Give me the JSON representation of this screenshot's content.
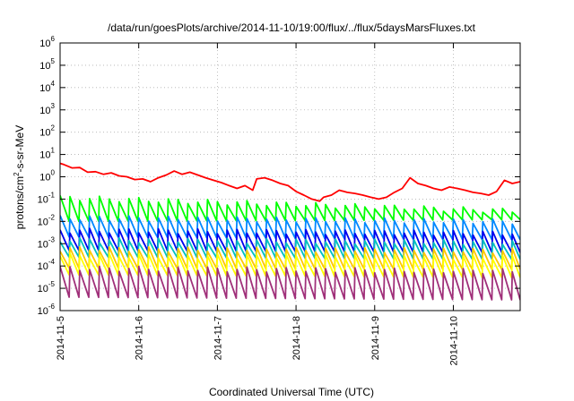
{
  "chart_data": {
    "type": "line",
    "title": "/data/run/goesPlots/archive/2014-11-10/19:00/flux/../flux/5daysMarsFluxes.txt",
    "xlabel": "Coordinated Universal Time (UTC)",
    "ylabel": {
      "base": "protons/cm",
      "sup": "2",
      "rest": "-s-sr-MeV"
    },
    "yscale": "log",
    "ylim_exp": [
      -6,
      6
    ],
    "y_ticks": [
      {
        "base": "10",
        "exp": "-6"
      },
      {
        "base": "10",
        "exp": "-5"
      },
      {
        "base": "10",
        "exp": "-4"
      },
      {
        "base": "10",
        "exp": "-3"
      },
      {
        "base": "10",
        "exp": "-2"
      },
      {
        "base": "10",
        "exp": "-1"
      },
      {
        "base": "10",
        "exp": "0"
      },
      {
        "base": "10",
        "exp": "1"
      },
      {
        "base": "10",
        "exp": "2"
      },
      {
        "base": "10",
        "exp": "3"
      },
      {
        "base": "10",
        "exp": "4"
      },
      {
        "base": "10",
        "exp": "5"
      },
      {
        "base": "10",
        "exp": "6"
      }
    ],
    "x_ticks": [
      "2014-11-5",
      "2014-11-6",
      "2014-11-7",
      "2014-11-8",
      "2014-11-9",
      "2014-11-10"
    ],
    "xlim_days": [
      0,
      5.85
    ],
    "grid": true,
    "series": [
      {
        "color": "#ff0000",
        "x": [
          0.0,
          0.05,
          0.15,
          0.25,
          0.35,
          0.45,
          0.55,
          0.65,
          0.75,
          0.85,
          0.95,
          1.05,
          1.15,
          1.25,
          1.35,
          1.45,
          1.55,
          1.65,
          1.75,
          1.85,
          1.95,
          2.05,
          2.15,
          2.25,
          2.35,
          2.45,
          2.5,
          2.6,
          2.7,
          2.8,
          2.9,
          3.0,
          3.1,
          3.2,
          3.3,
          3.35,
          3.45,
          3.55,
          3.65,
          3.75,
          3.85,
          3.95,
          4.05,
          4.15,
          4.25,
          4.35,
          4.45,
          4.55,
          4.65,
          4.75,
          4.85,
          4.95,
          5.05,
          5.15,
          5.25,
          5.35,
          5.45,
          5.55,
          5.65,
          5.75,
          5.85
        ],
        "y": [
          4.0,
          3.5,
          2.5,
          2.6,
          1.6,
          1.7,
          1.3,
          1.5,
          1.1,
          1.0,
          0.75,
          0.8,
          0.6,
          0.9,
          1.2,
          1.8,
          1.3,
          1.6,
          1.2,
          0.9,
          0.7,
          0.55,
          0.4,
          0.3,
          0.4,
          0.25,
          0.8,
          0.9,
          0.7,
          0.5,
          0.4,
          0.22,
          0.15,
          0.1,
          0.08,
          0.12,
          0.15,
          0.25,
          0.2,
          0.18,
          0.15,
          0.12,
          0.1,
          0.12,
          0.2,
          0.3,
          0.9,
          0.5,
          0.4,
          0.3,
          0.25,
          0.35,
          0.3,
          0.25,
          0.2,
          0.18,
          0.15,
          0.22,
          0.7,
          0.5,
          0.6
        ]
      },
      {
        "color": "#00ff00",
        "lo": 0.01,
        "hi": 0.12,
        "lo_end": 0.012,
        "hi_end": 0.03
      },
      {
        "color": "#0088ff",
        "lo": 0.002,
        "hi": 0.015,
        "lo_end": 0.0015,
        "hi_end": 0.01
      },
      {
        "color": "#0000ee",
        "lo": 0.0005,
        "hi": 0.004,
        "lo_end": 0.0004,
        "hi_end": 0.003
      },
      {
        "color": "#00c0c0",
        "lo": 0.00025,
        "hi": 0.0015,
        "lo_end": 0.0002,
        "hi_end": 0.0012
      },
      {
        "color": "#ffc800",
        "lo": 8e-05,
        "hi": 0.0006,
        "lo_end": 7e-05,
        "hi_end": 0.0005
      },
      {
        "color": "#ffff00",
        "lo": 4e-05,
        "hi": 0.0003,
        "lo_end": 3e-05,
        "hi_end": 0.00025
      },
      {
        "color": "#a0307a",
        "lo": 4e-06,
        "hi": 8e-05,
        "lo_end": 3e-06,
        "hi_end": 6e-05
      }
    ],
    "sawtooth_period_days": 0.125
  }
}
